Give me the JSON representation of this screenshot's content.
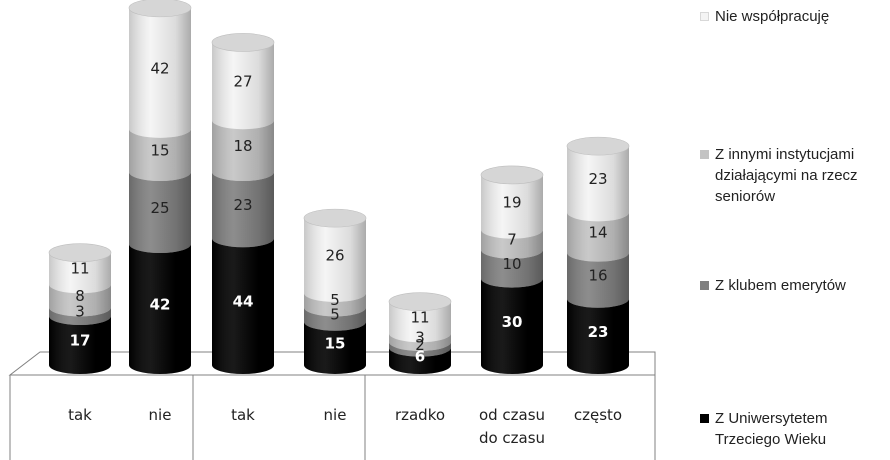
{
  "chart_data": {
    "type": "bar",
    "stacked": true,
    "categories": [
      "tak",
      "nie",
      "tak",
      "nie",
      "rzadko",
      "od czasu do czasu",
      "często"
    ],
    "series": [
      {
        "name": "Z Uniwersytetem Trzeciego Wieku",
        "color": "#000000",
        "label_color": "#ffffff",
        "values": [
          17,
          42,
          44,
          15,
          6,
          30,
          23
        ]
      },
      {
        "name": "Z klubem emerytów",
        "color": "#808080",
        "label_color": "#222222",
        "values": [
          3,
          25,
          23,
          5,
          2,
          10,
          16
        ]
      },
      {
        "name": "Z innymi instytucjami działającymi na rzecz seniorów",
        "color": "#c3c3c3",
        "label_color": "#222222",
        "values": [
          8,
          15,
          18,
          5,
          3,
          7,
          14
        ]
      },
      {
        "name": "Nie współpracuję",
        "color": "#f4f4f4",
        "label_color": "#222222",
        "values": [
          11,
          42,
          27,
          26,
          11,
          19,
          23
        ]
      }
    ],
    "legend_position": "right",
    "grid": false
  }
}
